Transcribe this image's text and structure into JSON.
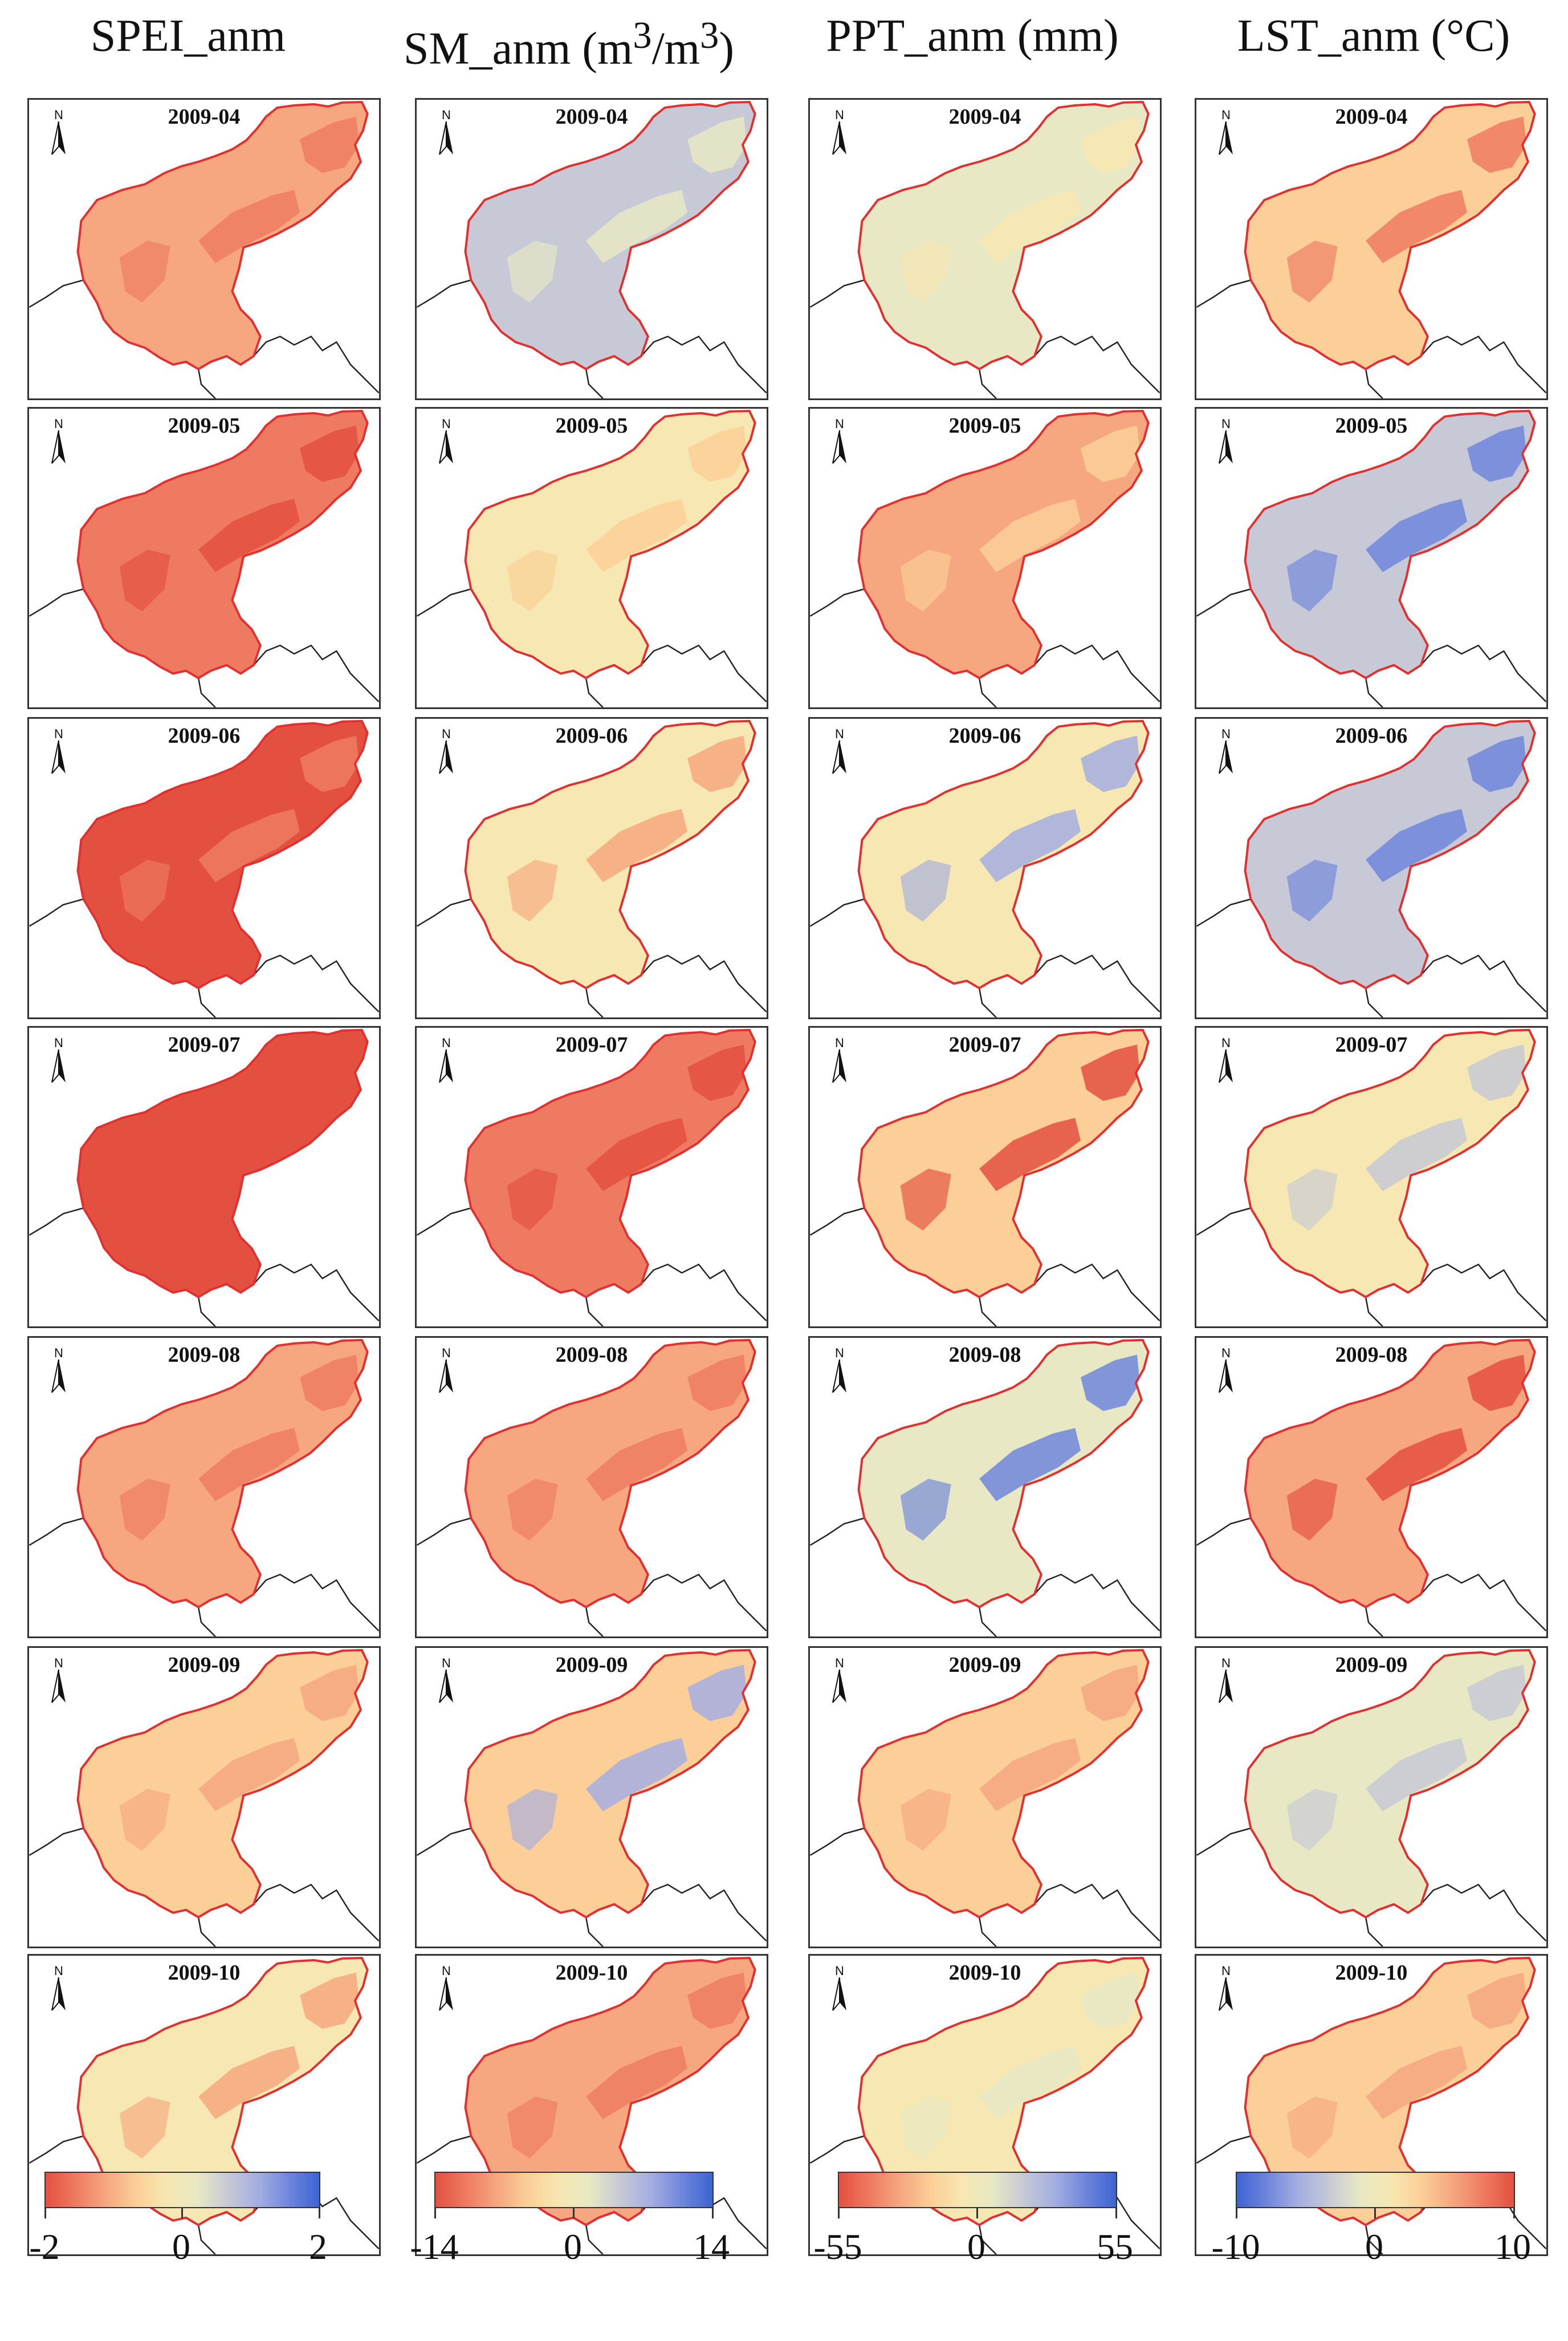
{
  "columns": [
    {
      "title": "SPEI_anm",
      "title_html": "SPEI_anm"
    },
    {
      "title": "SM_anm (m3/m3)",
      "title_html": "SM_anm (m<sup>3</sup>/m<sup>3</sup>)"
    },
    {
      "title": "PPT_anm (mm)",
      "title_html": "PPT_anm (mm)"
    },
    {
      "title": "LST_anm (°C)",
      "title_html": "LST_anm (°C)"
    }
  ],
  "months": [
    "2009-04",
    "2009-05",
    "2009-06",
    "2009-07",
    "2009-08",
    "2009-09",
    "2009-10"
  ],
  "north_label": "N",
  "colorbars": [
    {
      "min": "-2",
      "mid": "0",
      "max": "2",
      "reversed": false
    },
    {
      "min": "-14",
      "mid": "0",
      "max": "14",
      "reversed": false
    },
    {
      "min": "-55",
      "mid": "0",
      "max": "55",
      "reversed": false
    },
    {
      "min": "-10",
      "mid": "0",
      "max": "10",
      "reversed": true
    }
  ],
  "colors": {
    "strong_red": "#e4503f",
    "red": "#ee7b61",
    "orange": "#f6a77f",
    "light_orange": "#fbcf97",
    "neutral": "#f7e7b2",
    "pale_green": "#e8e8c4",
    "grey_blue": "#c7c9d6",
    "light_blue": "#a4aee0",
    "blue": "#6f86dc",
    "strong_blue": "#3d64d3",
    "outline": "#e03030"
  },
  "map_fills": [
    [
      "#f6a77f",
      "#ee7b61",
      "#e4503f",
      "#e4503f",
      "#f6a77f",
      "#fbcf97",
      "#f7e7b2"
    ],
    [
      "#c7c9d6",
      "#f7e7b2",
      "#f7e7b2",
      "#ee7b61",
      "#f6a77f",
      "#fbcf97",
      "#f6a77f"
    ],
    [
      "#e8e8c4",
      "#f6a77f",
      "#f7e7b2",
      "#fbcf97",
      "#e8e8c4",
      "#fbcf97",
      "#f7e7b2"
    ],
    [
      "#fbcf97",
      "#c7c9d6",
      "#c7c9d6",
      "#f7e7b2",
      "#f6a77f",
      "#e8e8c4",
      "#fbcf97"
    ]
  ],
  "patch_fills": [
    [
      "#ee7b61",
      "#e4503f",
      "#ee7b61",
      "#e4503f",
      "#ee7b61",
      "#f6a77f",
      "#f6a77f"
    ],
    [
      "#e8e8c4",
      "#fbcf97",
      "#f6a77f",
      "#e4503f",
      "#ee7b61",
      "#a4aee0",
      "#ee7b61"
    ],
    [
      "#f7e7b2",
      "#fbcf97",
      "#a4aee0",
      "#e4503f",
      "#6f86dc",
      "#f6a77f",
      "#e8e8c4"
    ],
    [
      "#ee7b61",
      "#6f86dc",
      "#6f86dc",
      "#c7c9d6",
      "#e4503f",
      "#c7c9d6",
      "#f6a77f"
    ]
  ]
}
